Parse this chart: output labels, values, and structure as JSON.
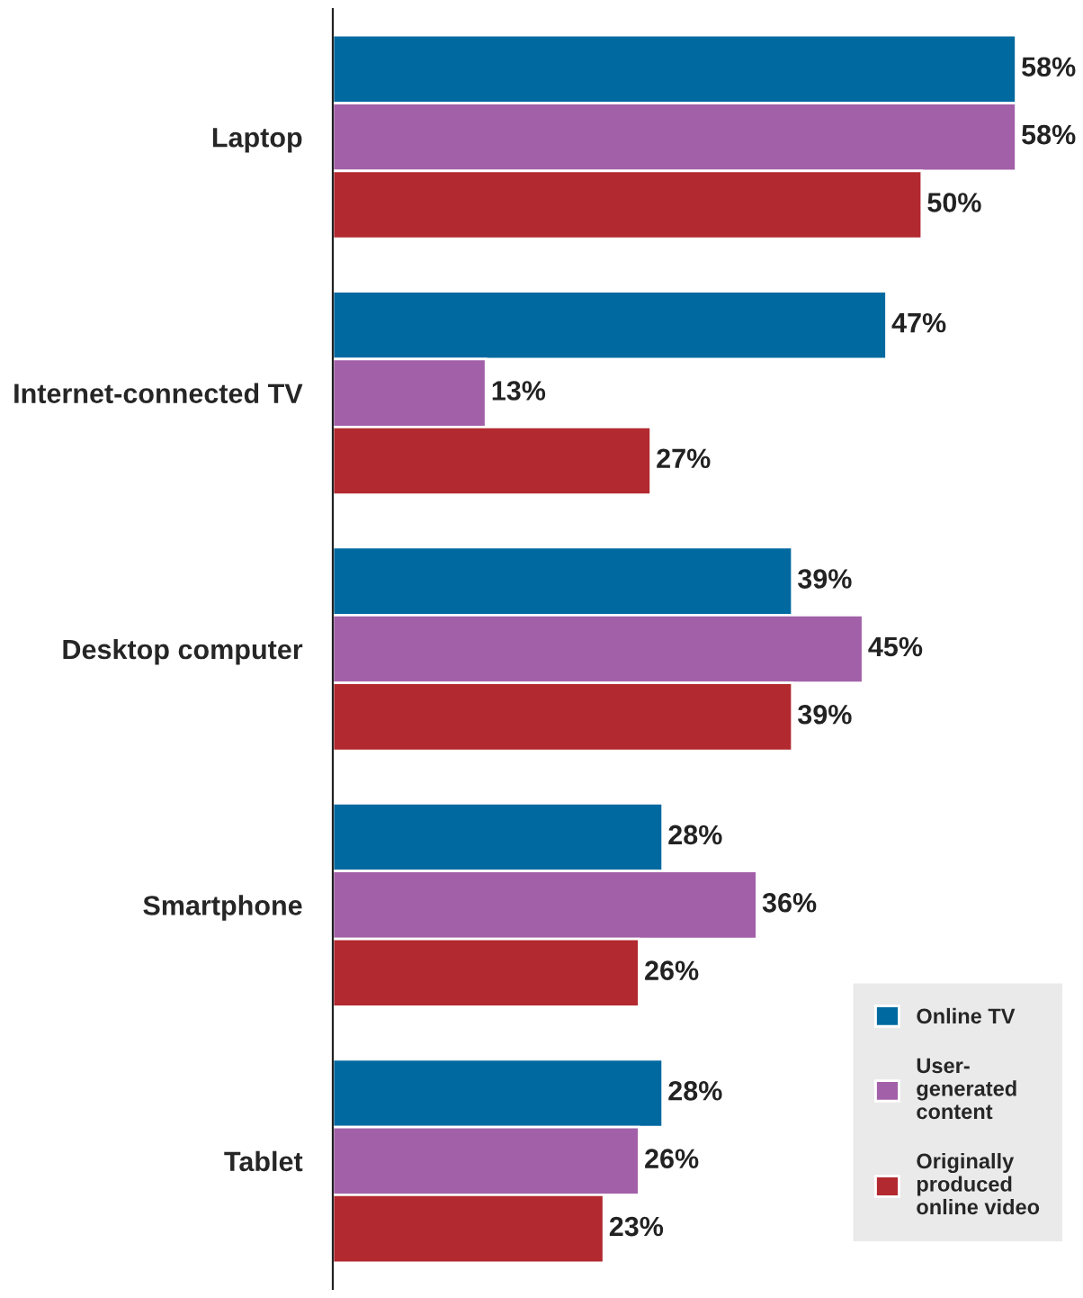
{
  "chart_data": {
    "type": "bar",
    "orientation": "horizontal",
    "categories": [
      "Laptop",
      "Internet-connected TV",
      "Desktop computer",
      "Smartphone",
      "Tablet"
    ],
    "series": [
      {
        "name": "Online TV",
        "color": "#0069a0",
        "values": [
          58,
          47,
          39,
          28,
          28
        ],
        "value_labels": [
          "58%",
          "47%",
          "39%",
          "28%",
          "28%"
        ]
      },
      {
        "name": "User-generated content",
        "color": "#a260a8",
        "values": [
          58,
          13,
          45,
          36,
          26
        ],
        "value_labels": [
          "58%",
          "13%",
          "45%",
          "36%",
          "26%"
        ]
      },
      {
        "name": "Originally produced online video",
        "color": "#b2292f",
        "values": [
          50,
          27,
          39,
          26,
          23
        ],
        "value_labels": [
          "50%",
          "27%",
          "39%",
          "26%",
          "23%"
        ]
      }
    ],
    "legend": "bottom right"
  }
}
